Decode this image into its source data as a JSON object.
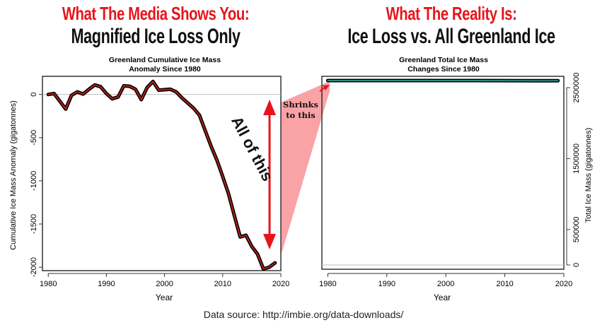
{
  "headlines": {
    "left_red": "What The Media Shows You:",
    "left_black": "Magnified Ice Loss Only",
    "right_red": "What The Reality Is:",
    "right_black": "Ice Loss vs. All Greenland Ice"
  },
  "annotations": {
    "all_of_this": "All of this",
    "shrinks_to_this": [
      "Shrinks",
      "to this"
    ]
  },
  "footer": "Data source: http://imbie.org/data-downloads/",
  "colors": {
    "headline_red": "#e8141b",
    "arrow_red": "#e8141b",
    "wedge_pink": "#f9a3a6",
    "left_line_outer": "#000000",
    "left_line_inner": "#b3211b",
    "right_line_outer": "#000000",
    "right_line_inner": "#2e8b84"
  },
  "chart_data": [
    {
      "type": "line",
      "title": "Greenland Cumulative Ice Mass\nAnomaly Since 1980",
      "xlabel": "Year",
      "ylabel": "Cumulative Ice Mass Anomaly (gigatonnes)",
      "xlim": [
        1979,
        2020
      ],
      "ylim": [
        -2040,
        210
      ],
      "xticks": [
        1980,
        1990,
        2000,
        2010,
        2020
      ],
      "yticks": [
        0,
        -500,
        -1000,
        -1500,
        -2000
      ],
      "reference_line_y": 0,
      "x": [
        1980,
        1981,
        1982,
        1983,
        1984,
        1985,
        1986,
        1987,
        1988,
        1989,
        1990,
        1991,
        1992,
        1993,
        1994,
        1995,
        1996,
        1997,
        1998,
        1999,
        2000,
        2001,
        2002,
        2003,
        2004,
        2005,
        2006,
        2007,
        2008,
        2009,
        2010,
        2011,
        2012,
        2013,
        2014,
        2015,
        2016,
        2017,
        2018,
        2019
      ],
      "y": [
        0,
        10,
        -80,
        -170,
        -10,
        30,
        5,
        60,
        110,
        90,
        10,
        -50,
        -30,
        100,
        95,
        60,
        -60,
        80,
        150,
        50,
        55,
        60,
        30,
        -40,
        -100,
        -160,
        -240,
        -420,
        -600,
        -760,
        -950,
        -1150,
        -1400,
        -1650,
        -1630,
        -1760,
        -1850,
        -2020,
        -2000,
        -1950
      ]
    },
    {
      "type": "line",
      "title": "Greenland Total Ice Mass\nChanges Since 1980",
      "xlabel": "Year",
      "ylabel": "Total Ice Mass (gigatonnes)",
      "xlim": [
        1979,
        2020
      ],
      "ylim": [
        -60000,
        2660000
      ],
      "xticks": [
        1980,
        1990,
        2000,
        2010,
        2020
      ],
      "yticks": [
        0,
        500000,
        1500000,
        2500000
      ],
      "y_axis_side": "right",
      "reference_line_y": 0,
      "x": [
        1980,
        1985,
        1990,
        1995,
        2000,
        2005,
        2010,
        2015,
        2019
      ],
      "y": [
        2600000,
        2600030,
        2600010,
        2599990,
        2600055,
        2599840,
        2599050,
        2598240,
        2598050
      ]
    }
  ]
}
